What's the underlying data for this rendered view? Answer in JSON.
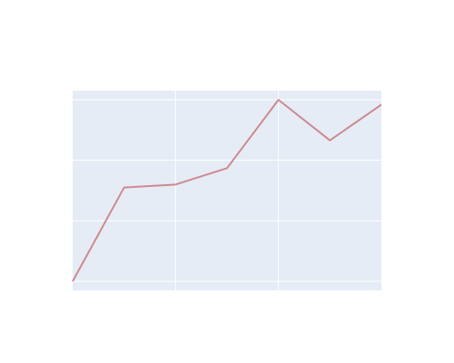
{
  "chart_data": {
    "type": "line",
    "x": [
      0,
      1,
      2,
      3,
      4,
      5,
      6
    ],
    "series": [
      {
        "values": [
          1.0,
          2.55,
          2.6,
          2.87,
          4.0,
          3.33,
          3.92
        ],
        "color": "#cd8a8e"
      }
    ],
    "xlim": [
      0,
      6
    ],
    "ylim": [
      0.85,
      4.15
    ],
    "x_grid": [
      2,
      4
    ],
    "y_grid": [
      1.0,
      2.0,
      3.0,
      4.0
    ],
    "grid": true,
    "plot_background": "#e5ecf6",
    "grid_color": "#ffffff",
    "tick_labels_shown": false,
    "legend": "none"
  }
}
